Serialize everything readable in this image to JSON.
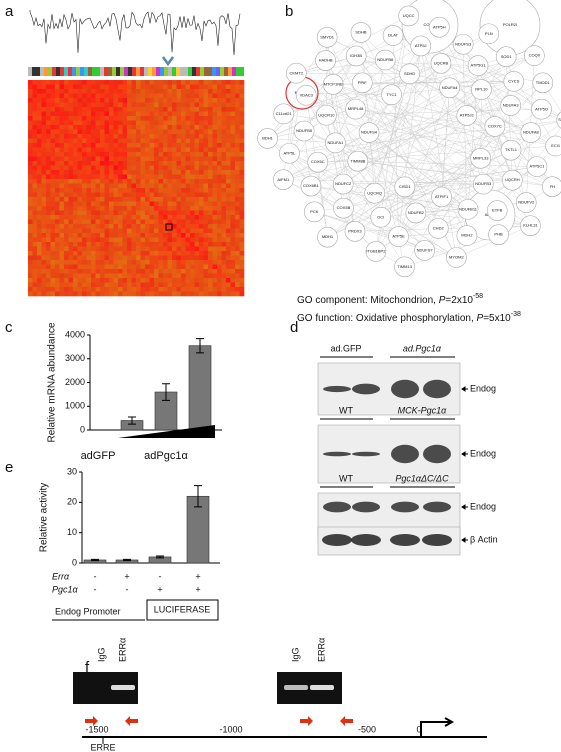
{
  "panel_labels": [
    "a",
    "b",
    "c",
    "d",
    "e",
    "f"
  ],
  "network": {
    "nodes": [
      "COX17",
      "POLR2I",
      "ENDOG",
      "ANK1",
      "NDUFS4",
      "ATP5J2",
      "CISD1",
      "TYC1",
      "MRPL33",
      "TIMM8B",
      "NDUFA4",
      "ATPIF1",
      "MRPL48",
      "COX7C",
      "UQCRQ",
      "SDHD",
      "NDUFB3",
      "NDUFA1",
      "RPL10",
      "NDUFB2",
      "PPIF",
      "TKTL1",
      "NDUFC2",
      "UQCRB",
      "NDUFB11",
      "UQCR10",
      "NDUFA3",
      "DCI",
      "NDUFB8",
      "UQCRH",
      "COX6C",
      "ATP5G1",
      "CHD2",
      "MTCP1NB",
      "NDUFA8",
      "COX5B",
      "ATP5J",
      "ETFB",
      "NDUFB5",
      "CYCS",
      "ATP5E",
      "IDH3B",
      "ATP5C1",
      "COX6B1",
      "NDUFS3",
      "MDH2",
      "VDAC3",
      "ATP5O",
      "PRDX3",
      "DLAT",
      "NDUFV2",
      "ATP5L",
      "SOD1",
      "NDUFS7",
      "HADHB",
      "ECI1",
      "PCK",
      "ATP5H",
      "PHB",
      "C11orf21",
      "TMOD1",
      "ITGB1BP2",
      "SDHB",
      "FH",
      "AIFM1",
      "PLN",
      "MYOM2",
      "CKMT2",
      "SLC25A4",
      "MDH1",
      "UQCC",
      "KLHL31",
      "BDH1",
      "COQ9",
      "TIMM13",
      "SMYD1"
    ],
    "go": [
      {
        "prefix": "GO component: Mitochondrion, ",
        "p": "P",
        "rest": "=2x10",
        "exp": "-58"
      },
      {
        "prefix": "GO function: Oxidative phosphorylation, ",
        "p": "P",
        "rest": "=5x10",
        "exp": "-38"
      }
    ]
  },
  "chart_data": [
    {
      "type": "bar",
      "ylabel": "Relative mRNA abundance",
      "categories": [
        "adGFP",
        null,
        null,
        null
      ],
      "group_label": "adPgc1α",
      "values": [
        0,
        400,
        1600,
        3550
      ],
      "errors": [
        null,
        150,
        350,
        300
      ],
      "color": "#777777",
      "ylim": [
        0,
        4000
      ],
      "yticks": [
        0,
        1000,
        2000,
        3000,
        4000
      ]
    },
    {
      "type": "bar",
      "ylabel": "Relative activity",
      "values": [
        1,
        1,
        2,
        22
      ],
      "errors": [
        0.2,
        0.2,
        0.3,
        3.5
      ],
      "color": "#777777",
      "ylim": [
        0,
        30
      ],
      "yticks": [
        0,
        10,
        20,
        30
      ],
      "rows": [
        {
          "name": "Errα",
          "values": [
            "-",
            "+",
            "-",
            "+"
          ]
        },
        {
          "name": "Pgc1α",
          "values": [
            "-",
            "-",
            "+",
            "+"
          ]
        }
      ],
      "promoter": "Endog Promoter",
      "reporter": "LUCIFERASE"
    }
  ],
  "blots": [
    {
      "groups": [
        "ad.GFP",
        "ad.Pgc1α"
      ],
      "band": "Endog"
    },
    {
      "groups": [
        "WT",
        "MCK-Pgc1α"
      ],
      "band": "Endog"
    },
    {
      "groups": [
        "WT",
        "Pgc1αΔC/ΔC"
      ],
      "band": "Endog",
      "band2": "β Actin"
    }
  ],
  "chip": {
    "lanes": [
      "IgG",
      "ERRα"
    ],
    "positions": [
      "-1500",
      "-1000",
      "-500",
      "0"
    ],
    "element": "ERRE"
  }
}
